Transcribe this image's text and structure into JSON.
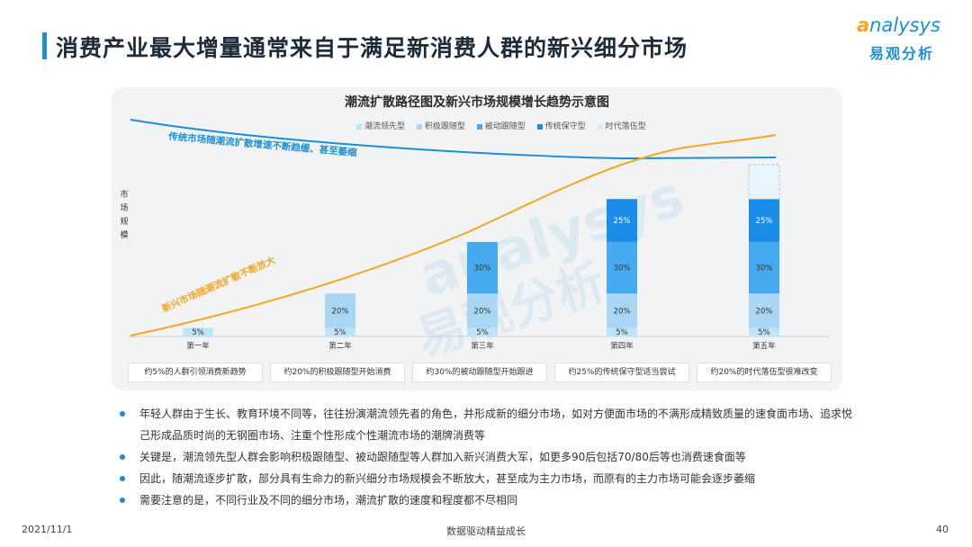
{
  "page": {
    "title": "消费产业最大增量通常来自于满足新消费人群的新兴细分市场",
    "footer_date": "2021/11/1",
    "footer_center": "数据驱动精益成长",
    "page_number": "40"
  },
  "logo": {
    "word_a": "a",
    "word_rest": "nalysys",
    "cn": "易观分析"
  },
  "chart_data": {
    "type": "bar",
    "title": "潮流扩散路径图及新兴市场规模增长趋势示意图",
    "ylabel": "市场规模",
    "categories": [
      "第一年",
      "第二年",
      "第三年",
      "第四年",
      "第五年"
    ],
    "series": [
      {
        "name": "潮流领先型",
        "color": "#bfe3f7",
        "values": [
          5,
          5,
          5,
          5,
          5
        ]
      },
      {
        "name": "积极跟随型",
        "color": "#a9d6f3",
        "values": [
          0,
          20,
          20,
          20,
          20
        ]
      },
      {
        "name": "被动跟随型",
        "color": "#46aaf0",
        "values": [
          0,
          0,
          30,
          30,
          30
        ]
      },
      {
        "name": "传统保守型",
        "color": "#1a8de8",
        "values": [
          0,
          0,
          0,
          25,
          25
        ]
      },
      {
        "name": "时代落伍型",
        "color": "#eaf4fb",
        "values": [
          0,
          0,
          0,
          0,
          20
        ]
      }
    ],
    "value_suffix": "%",
    "stack_max": 100,
    "annotations": {
      "traditional": "传统市场随潮流扩散增速不断趋缓、甚至萎缩",
      "emerging": "新兴市场随潮流扩散不断放大"
    },
    "captions": [
      "约5%的人群引领消费新趋势",
      "约20%的积极跟随型开始消费",
      "约30%的被动跟随型开始跟进",
      "约25%的传统保守型适当尝试",
      "约20%的时代落伍型很难改变"
    ],
    "colors": {
      "traditional_line": "#1a8fd6",
      "emerging_line": "#f5a623"
    },
    "watermark": {
      "word": "analysys",
      "cn": "易观分析"
    }
  },
  "bullets": [
    "年轻人群由于生长、教育环境不同等，往往扮演潮流领先者的角色，并形成新的细分市场，如对方便面市场的不满形成精致质量的速食面市场、追求悦己形成品质时尚的无钢圈市场、注重个性形成个性潮流市场的潮牌消费等",
    "关键是，潮流领先型人群会影响积极跟随型、被动跟随型等人群加入新兴消费大军，如更多90后包括70/80后等也消费速食面等",
    "因此，随潮流逐步扩散，部分具有生命力的新兴细分市场规模会不断放大，甚至成为主力市场，而原有的主力市场可能会逐步萎缩",
    "需要注意的是，不同行业及不同的细分市场，潮流扩散的速度和程度都不尽相同"
  ]
}
